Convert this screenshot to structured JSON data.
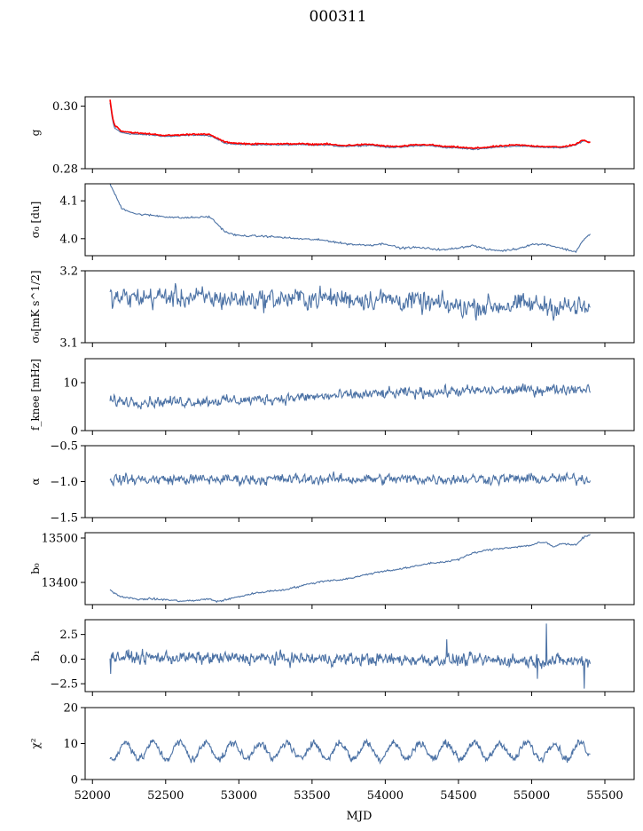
{
  "chart_data": {
    "title": "000311",
    "xlabel": "MJD",
    "x_range": [
      51950,
      55700
    ],
    "x_ticks": [
      52000,
      52500,
      53000,
      53500,
      54000,
      54500,
      55000,
      55500
    ],
    "x_tick_labels": [
      "52000",
      "52500",
      "53000",
      "53500",
      "54000",
      "54500",
      "55000",
      "55500"
    ],
    "series_colors": {
      "main": "#4c72a5",
      "fit": "#ff0000"
    },
    "panels": [
      {
        "name": "gain",
        "type": "line",
        "ylabel": "g",
        "ylim": [
          0.28,
          0.303
        ],
        "yticks": [
          0.28,
          0.3
        ],
        "ytick_labels": [
          "0.28",
          "0.30"
        ],
        "series": [
          {
            "name": "g",
            "color": "#4c72a5",
            "x": [
              52120,
              52135,
              52150,
              52200,
              52250,
              52300,
              52400,
              52500,
              52600,
              52700,
              52800,
              52850,
              52900,
              52950,
              53000,
              53100,
              53200,
              53300,
              53400,
              53500,
              53600,
              53700,
              53800,
              53900,
              54000,
              54100,
              54200,
              54300,
              54400,
              54500,
              54600,
              54700,
              54800,
              54900,
              55000,
              55100,
              55200,
              55300,
              55350,
              55400
            ],
            "y": [
              0.301,
              0.296,
              0.293,
              0.2915,
              0.2912,
              0.291,
              0.2908,
              0.2903,
              0.2905,
              0.2908,
              0.2905,
              0.2895,
              0.2883,
              0.288,
              0.2878,
              0.2876,
              0.2877,
              0.2876,
              0.2877,
              0.2875,
              0.2876,
              0.2871,
              0.2873,
              0.2875,
              0.2869,
              0.2868,
              0.2873,
              0.2874,
              0.2868,
              0.2866,
              0.2862,
              0.2866,
              0.287,
              0.2873,
              0.287,
              0.2868,
              0.2866,
              0.2875,
              0.2889,
              0.2886
            ]
          },
          {
            "name": "fit",
            "color": "#ff0000",
            "x": [
              52120,
              52135,
              52150,
              52200,
              52250,
              52300,
              52400,
              52500,
              52600,
              52700,
              52800,
              52850,
              52900,
              52950,
              53000,
              53100,
              53200,
              53300,
              53400,
              53500,
              53600,
              53700,
              53800,
              53900,
              54000,
              54100,
              54200,
              54300,
              54400,
              54500,
              54600,
              54700,
              54800,
              54900,
              55000,
              55100,
              55200,
              55300,
              55350,
              55400
            ],
            "y": [
              0.302,
              0.297,
              0.294,
              0.292,
              0.2917,
              0.2914,
              0.2911,
              0.2906,
              0.2908,
              0.2911,
              0.2909,
              0.2898,
              0.2886,
              0.2883,
              0.2881,
              0.2879,
              0.288,
              0.2879,
              0.288,
              0.2878,
              0.2879,
              0.2874,
              0.2876,
              0.2878,
              0.2872,
              0.2871,
              0.2876,
              0.2877,
              0.2871,
              0.2869,
              0.2865,
              0.2869,
              0.2873,
              0.2876,
              0.2873,
              0.2871,
              0.2869,
              0.2878,
              0.2891,
              0.2884
            ]
          }
        ]
      },
      {
        "name": "sigma0-du",
        "type": "line",
        "ylabel": "σ₀ [du]",
        "ylim": [
          3.955,
          4.145
        ],
        "yticks": [
          4.0,
          4.1
        ],
        "ytick_labels": [
          "4.0",
          "4.1"
        ],
        "series": [
          {
            "name": "sigma0_du",
            "color": "#4c72a5",
            "x": [
              52120,
              52150,
              52200,
              52300,
              52400,
              52500,
              52600,
              52700,
              52800,
              52850,
              52900,
              52950,
              53000,
              53100,
              53200,
              53300,
              53400,
              53500,
              53600,
              53700,
              53800,
              53900,
              54000,
              54100,
              54200,
              54300,
              54400,
              54500,
              54600,
              54700,
              54800,
              54900,
              55000,
              55100,
              55200,
              55300,
              55350,
              55400
            ],
            "y": [
              4.145,
              4.12,
              4.08,
              4.065,
              4.062,
              4.058,
              4.055,
              4.056,
              4.058,
              4.04,
              4.02,
              4.012,
              4.008,
              4.007,
              4.006,
              4.003,
              4.0,
              3.998,
              3.995,
              3.988,
              3.984,
              3.983,
              3.987,
              3.975,
              3.977,
              3.974,
              3.97,
              3.976,
              3.982,
              3.971,
              3.968,
              3.973,
              3.985,
              3.985,
              3.975,
              3.965,
              3.995,
              4.012
            ]
          }
        ]
      },
      {
        "name": "sigma0-mks",
        "type": "line",
        "ylabel": "σ₀[mK s^1/2]",
        "ylim": [
          3.1,
          3.2
        ],
        "yticks": [
          3.1,
          3.2
        ],
        "ytick_labels": [
          "3.1",
          "3.2"
        ],
        "series": [
          {
            "name": "sigma0_mks",
            "color": "#4c72a5",
            "base_x": [
              52120,
              52500,
              53000,
              53500,
              54000,
              54500,
              55000,
              55400
            ],
            "base_y": [
              3.161,
              3.164,
              3.16,
              3.162,
              3.161,
              3.15,
              3.153,
              3.147
            ],
            "noise_amplitude": 0.012,
            "n_points": 640
          }
        ]
      },
      {
        "name": "f-knee",
        "type": "line",
        "ylabel": "f_knee [mHz]",
        "ylim": [
          0,
          15
        ],
        "yticks": [
          0,
          10
        ],
        "ytick_labels": [
          "0",
          "10"
        ],
        "series": [
          {
            "name": "f_knee",
            "color": "#4c72a5",
            "base_x": [
              52120,
              52500,
              53000,
              53500,
              54000,
              54500,
              55000,
              55400
            ],
            "base_y": [
              6.2,
              6.0,
              6.3,
              7.0,
              7.7,
              8.2,
              8.5,
              8.8
            ],
            "noise_amplitude": 0.9,
            "n_points": 700
          }
        ]
      },
      {
        "name": "alpha",
        "type": "line",
        "ylabel": "α",
        "ylim": [
          -1.5,
          -0.5
        ],
        "yticks": [
          -1.5,
          -1.0,
          -0.5
        ],
        "ytick_labels": [
          "−1.5",
          "−1.0",
          "−0.5"
        ],
        "series": [
          {
            "name": "alpha",
            "color": "#4c72a5",
            "base_x": [
              52120,
              55400
            ],
            "base_y": [
              -0.97,
              -0.96
            ],
            "noise_amplitude": 0.06,
            "n_points": 700
          }
        ]
      },
      {
        "name": "b0",
        "type": "line",
        "ylabel": "b₀",
        "ylim": [
          13350,
          13512
        ],
        "yticks": [
          13400,
          13500
        ],
        "ytick_labels": [
          "13400",
          "13500"
        ],
        "series": [
          {
            "name": "b0",
            "color": "#4c72a5",
            "x": [
              52120,
              52150,
              52200,
              52300,
              52400,
              52500,
              52600,
              52700,
              52800,
              52850,
              52900,
              53000,
              53100,
              53200,
              53300,
              53400,
              53500,
              53600,
              53700,
              53800,
              53900,
              54000,
              54100,
              54200,
              54300,
              54400,
              54500,
              54600,
              54700,
              54800,
              54900,
              55000,
              55050,
              55100,
              55150,
              55200,
              55300,
              55350,
              55400
            ],
            "y": [
              13383,
              13376,
              13368,
              13362,
              13363,
              13361,
              13358,
              13359,
              13363,
              13357,
              13360,
              13368,
              13375,
              13380,
              13383,
              13390,
              13398,
              13404,
              13406,
              13412,
              13420,
              13426,
              13430,
              13436,
              13443,
              13446,
              13452,
              13466,
              13473,
              13477,
              13480,
              13484,
              13490,
              13489,
              13480,
              13487,
              13485,
              13500,
              13509
            ]
          }
        ]
      },
      {
        "name": "b1",
        "type": "line",
        "ylabel": "b₁",
        "ylim": [
          -3.3,
          4.0
        ],
        "yticks": [
          -2.5,
          0.0,
          2.5
        ],
        "ytick_labels": [
          "−2.5",
          "0.0",
          "2.5"
        ],
        "series": [
          {
            "name": "b1",
            "color": "#4c72a5",
            "base_x": [
              52120,
              55400
            ],
            "base_y": [
              0.2,
              -0.2
            ],
            "noise_amplitude": 0.5,
            "n_points": 800,
            "spikes": [
              {
                "x": 52125,
                "y": -1.5
              },
              {
                "x": 54420,
                "y": 2.0
              },
              {
                "x": 55100,
                "y": 3.6
              },
              {
                "x": 55040,
                "y": -2.0
              },
              {
                "x": 55360,
                "y": -3.0
              }
            ]
          }
        ]
      },
      {
        "name": "chi2",
        "type": "line",
        "ylabel": "χ²",
        "ylim": [
          0,
          20
        ],
        "yticks": [
          0,
          10,
          20
        ],
        "ytick_labels": [
          "0",
          "10",
          "20"
        ],
        "series": [
          {
            "name": "chi2",
            "color": "#4c72a5",
            "mean": 8.0,
            "oscillation_amplitude": 2.3,
            "period_days": 182.5,
            "phase_day": 52230,
            "noise_amplitude": 0.8,
            "x_start": 52120,
            "x_end": 55400,
            "n_points": 900
          }
        ]
      }
    ]
  }
}
